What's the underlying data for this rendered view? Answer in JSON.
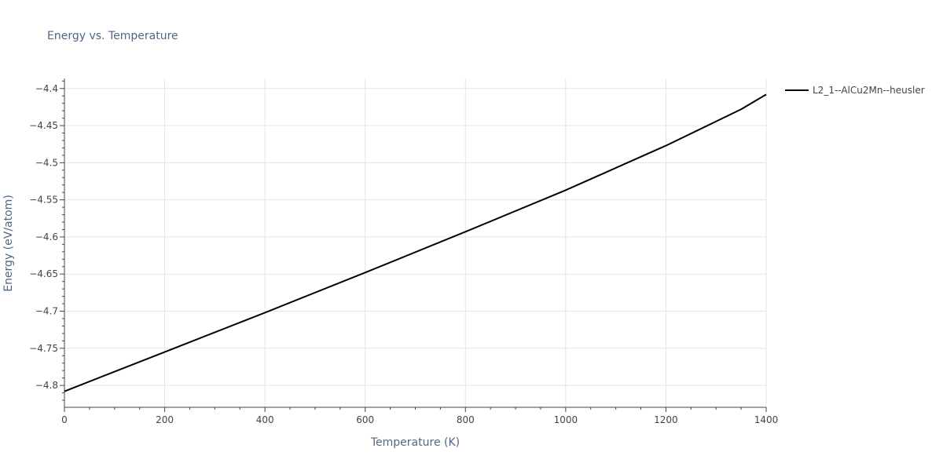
{
  "chart_data": {
    "type": "line",
    "title": "Energy vs. Temperature",
    "xlabel": "Temperature (K)",
    "ylabel": "Energy (eV/atom)",
    "xlim": [
      0,
      1400
    ],
    "ylim": [
      -4.8295,
      -4.3865
    ],
    "x_ticks": [
      0,
      200,
      400,
      600,
      800,
      1000,
      1200,
      1400
    ],
    "x_tick_labels": [
      "0",
      "200",
      "400",
      "600",
      "800",
      "1000",
      "1200",
      "1400"
    ],
    "y_ticks": [
      -4.4,
      -4.45,
      -4.5,
      -4.55,
      -4.6,
      -4.65,
      -4.7,
      -4.75,
      -4.8
    ],
    "y_tick_labels": [
      "−4.4",
      "−4.45",
      "−4.5",
      "−4.55",
      "−4.6",
      "−4.65",
      "−4.7",
      "−4.75",
      "−4.8"
    ],
    "grid": true,
    "legend_position": "top-right",
    "line_color": "#000000",
    "grid_color": "#e5e5e5",
    "series": [
      {
        "name": "L2_1--AlCu2Mn--heusler",
        "x": [
          0,
          200,
          400,
          600,
          800,
          1000,
          1100,
          1200,
          1350,
          1400
        ],
        "y": [
          -4.808,
          -4.755,
          -4.702,
          -4.648,
          -4.593,
          -4.537,
          -4.507,
          -4.477,
          -4.428,
          -4.408
        ]
      }
    ]
  }
}
